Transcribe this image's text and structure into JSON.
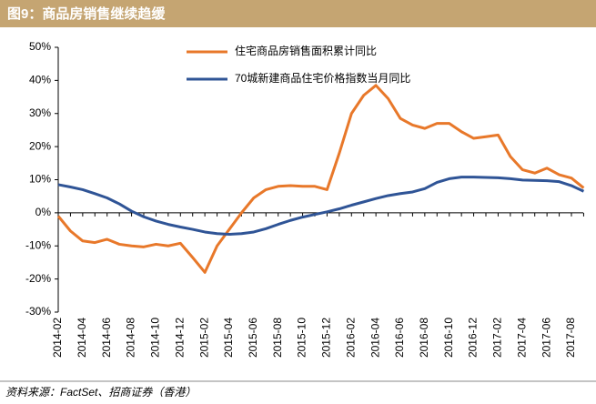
{
  "chart_data": {
    "type": "line",
    "title": "图9：商品房销售继续趋缓",
    "source": "资料来源：FactSet、招商证券（香港）",
    "categories": [
      "2014-02",
      null,
      "2014-04",
      null,
      "2014-06",
      null,
      "2014-08",
      null,
      "2014-10",
      null,
      "2014-12",
      null,
      "2015-02",
      null,
      "2015-04",
      null,
      "2015-06",
      null,
      "2015-08",
      null,
      "2015-10",
      null,
      "2015-12",
      null,
      "2016-02",
      null,
      "2016-04",
      null,
      "2016-06",
      null,
      "2016-08",
      null,
      "2016-10",
      null,
      "2016-12",
      null,
      "2017-02",
      null,
      "2017-04",
      null,
      "2017-06",
      null,
      "2017-08",
      null
    ],
    "series": [
      {
        "name": "住宅商品房销售面积累计同比",
        "color": "#E8782A",
        "values": [
          -1,
          -5.5,
          -8.5,
          -9,
          -8,
          -9.5,
          -10,
          -10.3,
          -9.5,
          -10,
          -9.2,
          -13.5,
          -18,
          -10,
          -5,
          0,
          4.5,
          7,
          8,
          8.2,
          8,
          8,
          7,
          18,
          30,
          35.5,
          38.5,
          34.5,
          28.5,
          26.5,
          25.5,
          27,
          27,
          24.5,
          22.5,
          23,
          23.5,
          17,
          13,
          12,
          13.5,
          11.5,
          10.5,
          7.5
        ]
      },
      {
        "name": "70城新建商品住宅价格指数当月同比",
        "color": "#2F5496",
        "values": [
          8.5,
          7.8,
          7,
          5.8,
          4.5,
          2.7,
          0.5,
          -1.2,
          -2.5,
          -3.5,
          -4.3,
          -5,
          -5.8,
          -6.3,
          -6.5,
          -6.3,
          -5.8,
          -4.8,
          -3.5,
          -2.3,
          -1.3,
          -0.5,
          0.3,
          1.2,
          2.3,
          3.3,
          4.3,
          5.2,
          5.8,
          6.3,
          7.3,
          9.2,
          10.3,
          10.8,
          10.8,
          10.7,
          10.6,
          10.3,
          9.9,
          9.8,
          9.7,
          9.4,
          8.2,
          6.5
        ]
      }
    ],
    "ylim": [
      -30,
      50
    ],
    "yticks": [
      {
        "value": -30,
        "label": "-30%"
      },
      {
        "value": -20,
        "label": "-20%"
      },
      {
        "value": -10,
        "label": "-10%"
      },
      {
        "value": 0,
        "label": "0%"
      },
      {
        "value": 10,
        "label": "10%"
      },
      {
        "value": 20,
        "label": "20%"
      },
      {
        "value": 30,
        "label": "30%"
      },
      {
        "value": 40,
        "label": "40%"
      },
      {
        "value": 50,
        "label": "50%"
      }
    ]
  }
}
